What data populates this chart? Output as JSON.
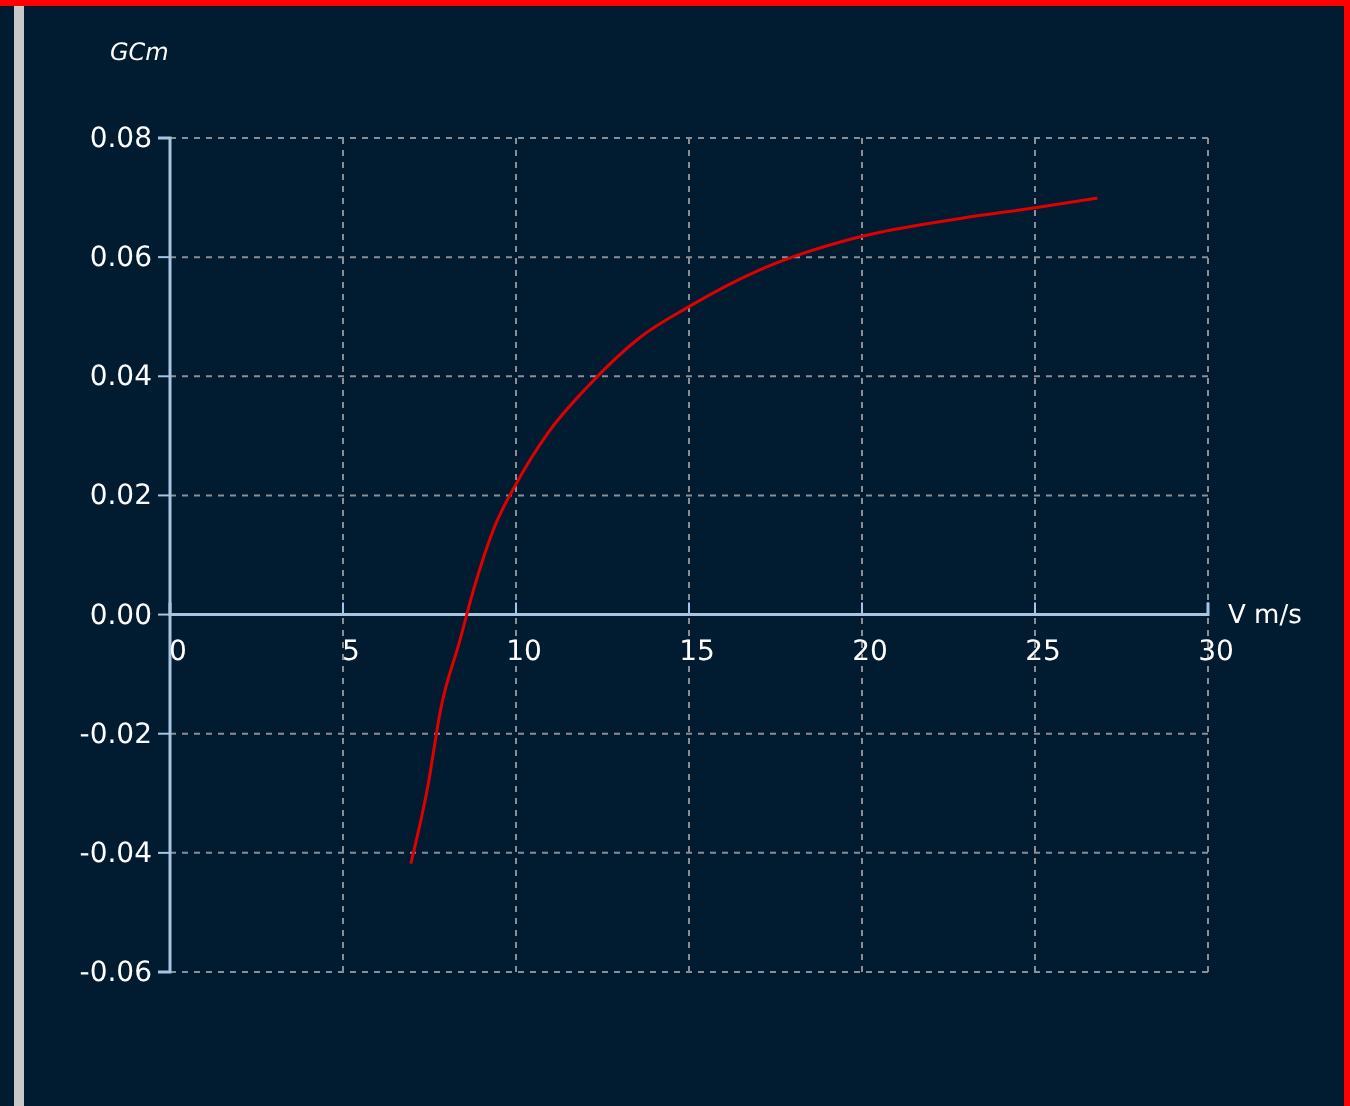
{
  "chart_data": {
    "type": "line",
    "xlabel": "V m/s",
    "ylabel": "GCm",
    "series": [
      {
        "color": "#e00000",
        "x": [
          6.96,
          7.44,
          7.83,
          8.37,
          8.79,
          9.37,
          10,
          10.9,
          12.06,
          13.6,
          15,
          17.06,
          20,
          22.85,
          25,
          26.8
        ],
        "values": [
          -0.0418,
          -0.0292,
          -0.0157,
          -0.0045,
          0.0045,
          0.0146,
          0.0219,
          0.0303,
          0.0382,
          0.0466,
          0.0517,
          0.0579,
          0.0635,
          0.0665,
          0.0683,
          0.0699
        ]
      }
    ],
    "xlim": [
      0,
      30
    ],
    "xticks": [
      0,
      5,
      10,
      15,
      20,
      25,
      30
    ],
    "ylim": [
      -0.06,
      0.08
    ],
    "yticks": [
      {
        "value": -0.06,
        "label": "-0.06"
      },
      {
        "value": -0.04,
        "label": "-0.04"
      },
      {
        "value": -0.02,
        "label": "-0.02"
      },
      {
        "value": 0,
        "label": "0.00"
      },
      {
        "value": 0.02,
        "label": "0.02"
      },
      {
        "value": 0.04,
        "label": "0.04"
      },
      {
        "value": 0.06,
        "label": "0.06"
      },
      {
        "value": 0.08,
        "label": "0.08"
      }
    ],
    "grid": true,
    "marker": "none",
    "line_style": "solid"
  }
}
